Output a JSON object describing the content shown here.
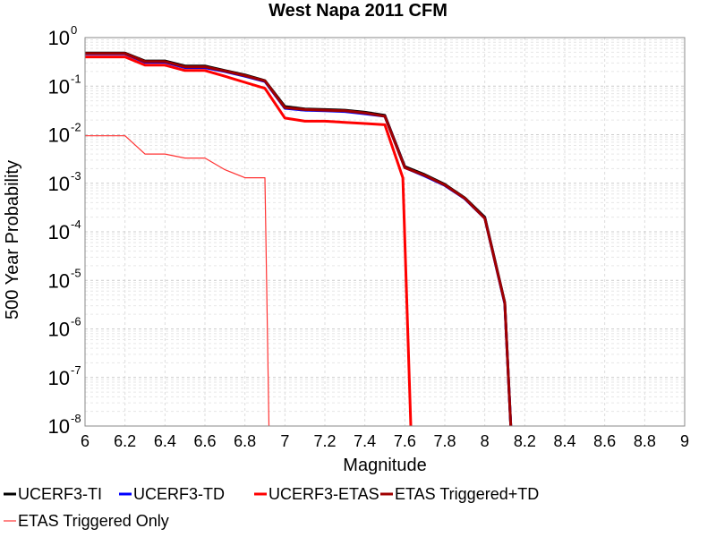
{
  "chart_data": {
    "type": "line",
    "title": "West Napa 2011 CFM",
    "xlabel": "Magnitude",
    "ylabel": "500 Year Probability",
    "xlim": [
      6,
      9
    ],
    "ylim": [
      1e-08,
      1
    ],
    "y_scale": "log",
    "grid": true,
    "legend_placement": "bottom",
    "x_ticks": [
      "6",
      "6.2",
      "6.4",
      "6.6",
      "6.8",
      "7",
      "7.2",
      "7.4",
      "7.6",
      "7.8",
      "8",
      "8.2",
      "8.4",
      "8.6",
      "8.8",
      "9"
    ],
    "y_ticks": [
      {
        "base": "10",
        "exp": "0"
      },
      {
        "base": "10",
        "exp": "-1"
      },
      {
        "base": "10",
        "exp": "-2"
      },
      {
        "base": "10",
        "exp": "-3"
      },
      {
        "base": "10",
        "exp": "-4"
      },
      {
        "base": "10",
        "exp": "-5"
      },
      {
        "base": "10",
        "exp": "-6"
      },
      {
        "base": "10",
        "exp": "-7"
      },
      {
        "base": "10",
        "exp": "-8"
      }
    ],
    "series": [
      {
        "name": "UCERF3-TI",
        "color": "#000000",
        "style": "thick",
        "x": [
          6.0,
          6.1,
          6.2,
          6.3,
          6.4,
          6.5,
          6.6,
          6.7,
          6.8,
          6.9,
          7.0,
          7.1,
          7.2,
          7.3,
          7.4,
          7.5,
          7.6,
          7.7,
          7.8,
          7.9,
          8.0,
          8.1,
          8.13
        ],
        "y": [
          0.48,
          0.48,
          0.48,
          0.33,
          0.33,
          0.26,
          0.26,
          0.21,
          0.17,
          0.13,
          0.038,
          0.034,
          0.033,
          0.032,
          0.029,
          0.025,
          0.0022,
          0.0015,
          0.00095,
          0.0005,
          0.0002,
          3.5e-06,
          1e-08
        ]
      },
      {
        "name": "UCERF3-TD",
        "color": "#0000ff",
        "style": "thick",
        "x": [
          6.0,
          6.1,
          6.2,
          6.3,
          6.4,
          6.5,
          6.6,
          6.7,
          6.8,
          6.9,
          7.0,
          7.1,
          7.2,
          7.3,
          7.4,
          7.5,
          7.6,
          7.7,
          7.8,
          7.9,
          8.0,
          8.1,
          8.13
        ],
        "y": [
          0.46,
          0.46,
          0.46,
          0.31,
          0.31,
          0.24,
          0.24,
          0.2,
          0.16,
          0.125,
          0.035,
          0.032,
          0.031,
          0.03,
          0.027,
          0.024,
          0.0021,
          0.0014,
          0.0009,
          0.00048,
          0.00019,
          3.3e-06,
          1e-08
        ]
      },
      {
        "name": "UCERF3-ETAS",
        "color": "#ff0000",
        "style": "thick",
        "x": [
          6.0,
          6.1,
          6.2,
          6.3,
          6.4,
          6.5,
          6.6,
          6.7,
          6.8,
          6.9,
          7.0,
          7.1,
          7.2,
          7.3,
          7.4,
          7.5,
          7.59,
          7.63
        ],
        "y": [
          0.4,
          0.4,
          0.4,
          0.27,
          0.27,
          0.21,
          0.21,
          0.16,
          0.12,
          0.09,
          0.022,
          0.019,
          0.019,
          0.018,
          0.017,
          0.016,
          0.0013,
          1e-08
        ]
      },
      {
        "name": "ETAS Triggered+TD",
        "color": "#a00000",
        "style": "thick",
        "x": [
          6.0,
          6.1,
          6.2,
          6.3,
          6.4,
          6.5,
          6.6,
          6.7,
          6.8,
          6.9,
          7.0,
          7.1,
          7.2,
          7.3,
          7.4,
          7.5,
          7.6,
          7.7,
          7.8,
          7.9,
          8.0,
          8.1,
          8.13
        ],
        "y": [
          0.47,
          0.47,
          0.47,
          0.32,
          0.32,
          0.25,
          0.25,
          0.205,
          0.165,
          0.128,
          0.036,
          0.033,
          0.032,
          0.031,
          0.028,
          0.024,
          0.0021,
          0.00145,
          0.00092,
          0.00049,
          0.00019,
          3.4e-06,
          1e-08
        ]
      },
      {
        "name": "ETAS Triggered Only",
        "color": "#ff3333",
        "style": "thin",
        "x": [
          6.0,
          6.1,
          6.2,
          6.3,
          6.4,
          6.5,
          6.6,
          6.7,
          6.8,
          6.9,
          6.92
        ],
        "y": [
          0.0095,
          0.0095,
          0.0095,
          0.004,
          0.004,
          0.0033,
          0.0033,
          0.0019,
          0.0013,
          0.0013,
          1e-08
        ]
      }
    ]
  }
}
